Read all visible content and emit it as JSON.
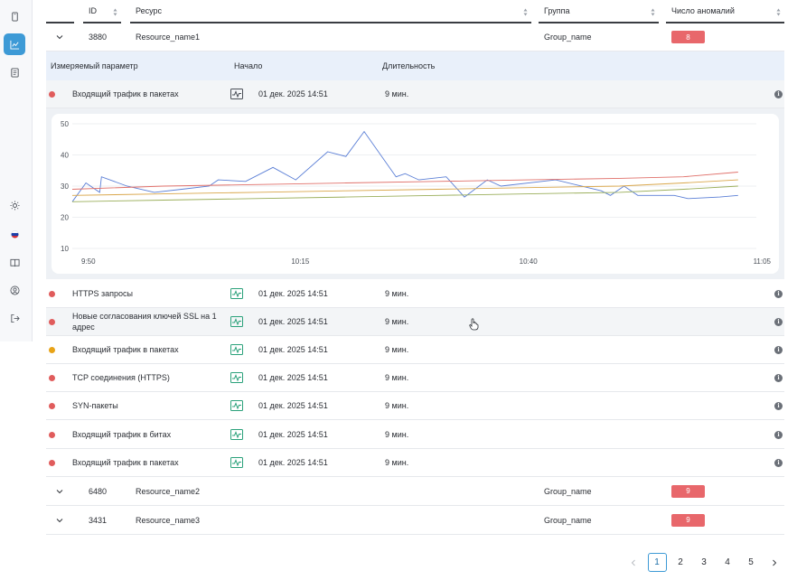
{
  "table": {
    "headers": {
      "id": "ID",
      "resource": "Ресурс",
      "group": "Группа",
      "anomalies": "Число аномалий"
    },
    "rows": [
      {
        "id": "3880",
        "resource": "Resource_name1",
        "group": "Group_name",
        "anomalies": "8"
      },
      {
        "id": "6480",
        "resource": "Resource_name2",
        "group": "Group_name",
        "anomalies": "9"
      },
      {
        "id": "3431",
        "resource": "Resource_name3",
        "group": "Group_name",
        "anomalies": "9"
      }
    ]
  },
  "subtable": {
    "headers": {
      "param": "Измеряемый параметр",
      "start": "Начало",
      "duration": "Длительность"
    },
    "rows": [
      {
        "name": "Входящий трафик в пакетах",
        "start": "01 дек. 2025 14:51",
        "duration": "9 мин.",
        "status_color": "#e05c5c"
      },
      {
        "name": "HTTPS запросы",
        "start": "01 дек. 2025 14:51",
        "duration": "9 мин.",
        "status_color": "#e05c5c"
      },
      {
        "name": "Новые согласования ключей SSL на 1 адрес",
        "start": "01 дек. 2025 14:51",
        "duration": "9 мин.",
        "status_color": "#e05c5c"
      },
      {
        "name": "Входящий трафик в пакетах",
        "start": "01 дек. 2025 14:51",
        "duration": "9 мин.",
        "status_color": "#e8a317"
      },
      {
        "name": "TCP соединения (HTTPS)",
        "start": "01 дек. 2025 14:51",
        "duration": "9 мин.",
        "status_color": "#e05c5c"
      },
      {
        "name": "SYN-пакеты",
        "start": "01 дек. 2025 14:51",
        "duration": "9 мин.",
        "status_color": "#e05c5c"
      },
      {
        "name": "Входящий трафик в битах",
        "start": "01 дек. 2025 14:51",
        "duration": "9 мин.",
        "status_color": "#e05c5c"
      },
      {
        "name": "Входящий трафик в пакетах",
        "start": "01 дек. 2025 14:51",
        "duration": "9 мин.",
        "status_color": "#e05c5c"
      }
    ]
  },
  "pagination": {
    "pages": [
      "1",
      "2",
      "3",
      "4",
      "5"
    ],
    "active": "1"
  },
  "chart_data": {
    "type": "line",
    "x_tick_labels": [
      "9:50",
      "10:15",
      "10:40",
      "11:05"
    ],
    "x_minutes": [
      0,
      75
    ],
    "y_ticks": [
      "50",
      "40",
      "30",
      "20",
      "10"
    ],
    "ylim": [
      10,
      50
    ],
    "grid": true,
    "series": [
      {
        "color": "#5b7fd6",
        "points": [
          [
            0,
            25
          ],
          [
            1.5,
            31
          ],
          [
            3,
            28
          ],
          [
            3.2,
            33
          ],
          [
            6,
            30
          ],
          [
            9,
            28
          ],
          [
            12,
            29
          ],
          [
            15,
            30
          ],
          [
            16,
            32
          ],
          [
            19,
            31.5
          ],
          [
            22,
            36
          ],
          [
            24.5,
            32
          ],
          [
            28,
            41
          ],
          [
            30,
            39.5
          ],
          [
            32,
            47.5
          ],
          [
            35.5,
            33
          ],
          [
            36.5,
            34
          ],
          [
            38,
            32
          ],
          [
            41,
            33
          ],
          [
            43,
            26.5
          ],
          [
            45.5,
            32
          ],
          [
            47,
            30
          ],
          [
            53,
            32
          ],
          [
            58,
            28.5
          ],
          [
            59,
            27
          ],
          [
            60.5,
            30
          ],
          [
            62,
            27
          ],
          [
            66,
            27
          ],
          [
            67.5,
            26
          ],
          [
            71,
            26.5
          ],
          [
            73,
            27
          ]
        ]
      },
      {
        "color": "#e0706a",
        "points": [
          [
            0,
            29
          ],
          [
            10,
            30
          ],
          [
            20,
            30.5
          ],
          [
            30,
            31
          ],
          [
            40,
            31.5
          ],
          [
            50,
            32
          ],
          [
            60,
            32.5
          ],
          [
            67,
            33
          ],
          [
            73,
            34.5
          ]
        ]
      },
      {
        "color": "#d9a64a",
        "points": [
          [
            0,
            27
          ],
          [
            10,
            27.5
          ],
          [
            20,
            28
          ],
          [
            30,
            28.5
          ],
          [
            40,
            29
          ],
          [
            50,
            29.5
          ],
          [
            60,
            30
          ],
          [
            67,
            31
          ],
          [
            73,
            32
          ]
        ]
      },
      {
        "color": "#9aae5a",
        "points": [
          [
            0,
            25
          ],
          [
            10,
            25.5
          ],
          [
            20,
            26
          ],
          [
            30,
            26.5
          ],
          [
            40,
            27
          ],
          [
            50,
            27.5
          ],
          [
            60,
            28
          ],
          [
            67,
            29
          ],
          [
            73,
            30
          ]
        ]
      }
    ]
  }
}
